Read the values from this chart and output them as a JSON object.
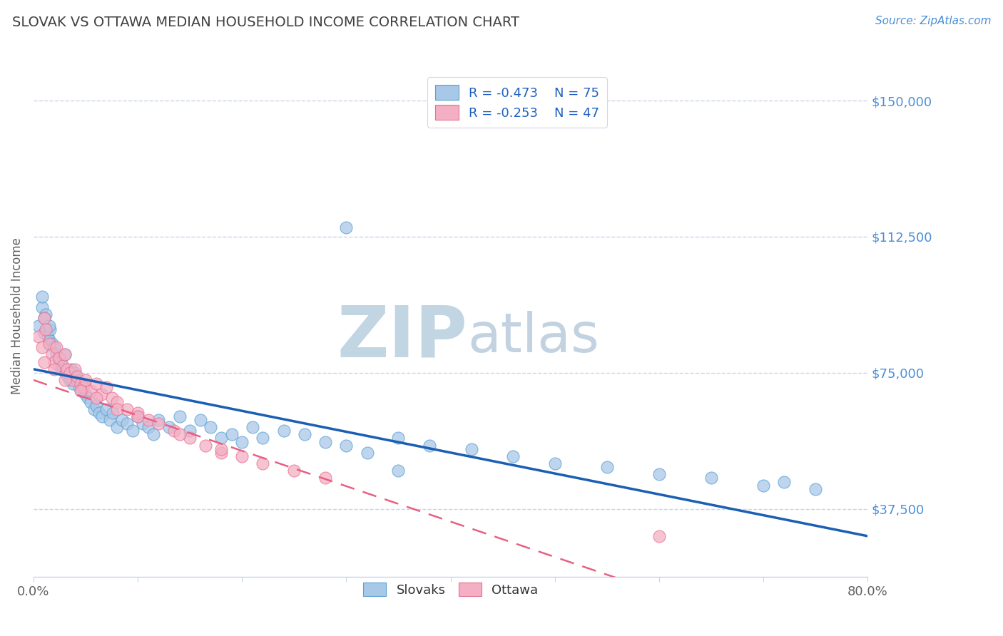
{
  "title": "SLOVAK VS OTTAWA MEDIAN HOUSEHOLD INCOME CORRELATION CHART",
  "source_text": "Source: ZipAtlas.com",
  "ylabel": "Median Household Income",
  "xlim": [
    0.0,
    0.8
  ],
  "ylim": [
    18750,
    162500
  ],
  "yticks": [
    37500,
    75000,
    112500,
    150000
  ],
  "ytick_labels": [
    "$37,500",
    "$75,000",
    "$112,500",
    "$150,000"
  ],
  "xticks": [
    0.0,
    0.1,
    0.2,
    0.3,
    0.4,
    0.5,
    0.6,
    0.7,
    0.8
  ],
  "xtick_labels": [
    "0.0%",
    "",
    "",
    "",
    "",
    "",
    "",
    "",
    "80.0%"
  ],
  "slovaks_x": [
    0.005,
    0.008,
    0.01,
    0.012,
    0.014,
    0.015,
    0.016,
    0.018,
    0.02,
    0.022,
    0.023,
    0.025,
    0.026,
    0.028,
    0.03,
    0.031,
    0.033,
    0.035,
    0.036,
    0.038,
    0.04,
    0.042,
    0.044,
    0.046,
    0.048,
    0.05,
    0.052,
    0.055,
    0.058,
    0.06,
    0.063,
    0.066,
    0.07,
    0.073,
    0.076,
    0.08,
    0.085,
    0.09,
    0.095,
    0.1,
    0.105,
    0.11,
    0.115,
    0.12,
    0.13,
    0.14,
    0.15,
    0.16,
    0.17,
    0.18,
    0.19,
    0.2,
    0.21,
    0.22,
    0.24,
    0.26,
    0.28,
    0.3,
    0.32,
    0.35,
    0.38,
    0.42,
    0.46,
    0.5,
    0.55,
    0.6,
    0.65,
    0.7,
    0.72,
    0.75,
    0.3,
    0.008,
    0.01,
    0.015,
    0.35
  ],
  "slovaks_y": [
    88000,
    93000,
    86000,
    91000,
    85000,
    84000,
    87000,
    83000,
    82000,
    80000,
    79000,
    77000,
    78000,
    76000,
    80000,
    75000,
    74000,
    73000,
    76000,
    72000,
    75000,
    73000,
    71000,
    70000,
    72000,
    69000,
    68000,
    67000,
    65000,
    66000,
    64000,
    63000,
    65000,
    62000,
    64000,
    60000,
    62000,
    61000,
    59000,
    63000,
    61000,
    60000,
    58000,
    62000,
    60000,
    63000,
    59000,
    62000,
    60000,
    57000,
    58000,
    56000,
    60000,
    57000,
    59000,
    58000,
    56000,
    55000,
    53000,
    57000,
    55000,
    54000,
    52000,
    50000,
    49000,
    47000,
    46000,
    44000,
    45000,
    43000,
    115000,
    96000,
    90000,
    88000,
    48000
  ],
  "ottawa_x": [
    0.005,
    0.008,
    0.01,
    0.012,
    0.015,
    0.018,
    0.02,
    0.022,
    0.025,
    0.028,
    0.03,
    0.032,
    0.035,
    0.038,
    0.04,
    0.042,
    0.045,
    0.048,
    0.05,
    0.055,
    0.06,
    0.065,
    0.07,
    0.075,
    0.08,
    0.09,
    0.1,
    0.11,
    0.12,
    0.135,
    0.15,
    0.165,
    0.18,
    0.2,
    0.22,
    0.25,
    0.28,
    0.01,
    0.02,
    0.03,
    0.045,
    0.06,
    0.08,
    0.1,
    0.14,
    0.18,
    0.6
  ],
  "ottawa_y": [
    85000,
    82000,
    90000,
    87000,
    83000,
    80000,
    78000,
    82000,
    79000,
    77000,
    80000,
    76000,
    75000,
    73000,
    76000,
    74000,
    72000,
    71000,
    73000,
    70000,
    72000,
    69000,
    71000,
    68000,
    67000,
    65000,
    64000,
    62000,
    61000,
    59000,
    57000,
    55000,
    53000,
    52000,
    50000,
    48000,
    46000,
    78000,
    76000,
    73000,
    70000,
    68000,
    65000,
    63000,
    58000,
    54000,
    30000
  ],
  "slovaks_color": "#a8c8e8",
  "ottawa_color": "#f4afc4",
  "slovaks_edge_color": "#5a9fd4",
  "ottawa_edge_color": "#e87090",
  "trendline_slovak_color": "#1a5fb4",
  "trendline_ottawa_color": "#e86080",
  "legend_r_slovak": "R = -0.473",
  "legend_n_slovak": "N = 75",
  "legend_r_ottawa": "R = -0.253",
  "legend_n_ottawa": "N = 47",
  "watermark_zip": "ZIP",
  "watermark_atlas": "atlas",
  "watermark_color_zip": "#c8d8e8",
  "watermark_color_atlas": "#a8c0d8",
  "title_color": "#404040",
  "axis_label_color": "#606060",
  "ytick_color": "#4a90d9",
  "xtick_color": "#606060",
  "grid_color": "#c8d4e8",
  "background_color": "#ffffff",
  "legend_text_color": "#333333",
  "legend_value_color": "#2060c0",
  "source_color": "#4a90d9"
}
